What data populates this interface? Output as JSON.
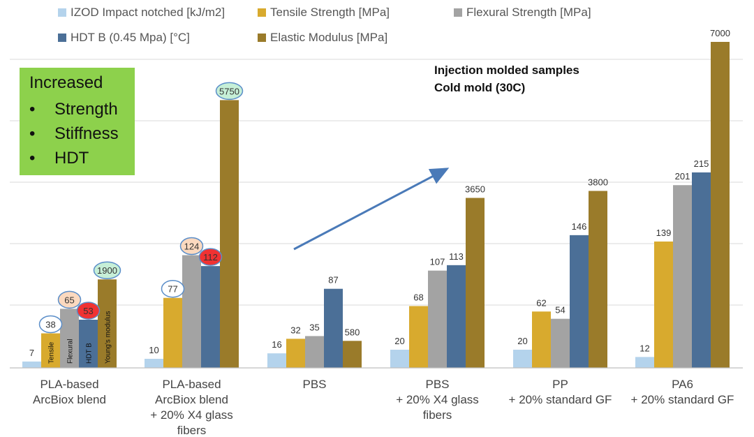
{
  "chart_data": {
    "type": "bar",
    "title": "",
    "xlabel": "",
    "ylabel": "",
    "ylim": [
      0,
      7000
    ],
    "grid": true,
    "legend_position": "top",
    "categories": [
      [
        "PLA-based",
        "ArcBiox blend"
      ],
      [
        "PLA-based",
        "ArcBiox blend",
        "+ 20% X4 glass",
        "fibers"
      ],
      [
        "PBS"
      ],
      [
        "PBS",
        "+ 20% X4 glass",
        "fibers"
      ],
      [
        "PP",
        "+ 20% standard GF"
      ],
      [
        "PA6",
        "+ 20% standard GF"
      ]
    ],
    "series": [
      {
        "name": "IZOD Impact notched [kJ/m2]",
        "color": "#b4d3ec",
        "values": [
          7,
          10,
          16,
          20,
          20,
          12
        ]
      },
      {
        "name": "Tensile Strength [MPa]",
        "color": "#d8aa2e",
        "values": [
          38,
          77,
          32,
          68,
          62,
          139
        ]
      },
      {
        "name": "Flexural Strength  [MPa]",
        "color": "#a3a3a3",
        "values": [
          65,
          124,
          35,
          107,
          54,
          201
        ]
      },
      {
        "name": "HDT B (0.45 Mpa) [°C]",
        "color": "#4b6f97",
        "values": [
          53,
          112,
          87,
          113,
          146,
          215
        ]
      },
      {
        "name": "Elastic Modulus  [MPa]",
        "color": "#9a7b2a",
        "values": [
          1900,
          5750,
          580,
          3650,
          3800,
          7000
        ]
      }
    ],
    "circled_labels": [
      {
        "value": "38",
        "fill": "#ffffff",
        "stroke": "#5b8ec9"
      },
      {
        "value": "65",
        "fill": "#fbd9bf",
        "stroke": "#5b8ec9"
      },
      {
        "value": "53",
        "fill": "#f03232",
        "stroke": "#5b8ec9"
      },
      {
        "value": "1900",
        "fill": "#c6efd7",
        "stroke": "#5b8ec9"
      },
      {
        "value": "77",
        "fill": "#ffffff",
        "stroke": "#5b8ec9"
      },
      {
        "value": "124",
        "fill": "#fbd9bf",
        "stroke": "#5b8ec9"
      },
      {
        "value": "112",
        "fill": "#f03232",
        "stroke": "#5b8ec9"
      },
      {
        "value": "5750",
        "fill": "#c6efd7",
        "stroke": "#5b8ec9"
      }
    ],
    "bar_inline_labels": [
      "Tensile",
      "Flexural",
      "HDT B",
      "Young's modulus"
    ],
    "annotations": [
      "Injection molded samples",
      "Cold mold (30C)"
    ]
  },
  "legend": {
    "izod": "IZOD Impact notched [kJ/m2]",
    "tensile": "Tensile Strength [MPa]",
    "flexural": "Flexural Strength  [MPa]",
    "hdt": "HDT B (0.45 Mpa) [°C]",
    "modulus": "Elastic Modulus  [MPa]"
  },
  "note": {
    "line1": "Injection molded samples",
    "line2": "Cold mold (30C)"
  },
  "greenbox": {
    "title": "Increased",
    "bullet": "•",
    "items": [
      "Strength",
      "Stiffness",
      "HDT"
    ]
  },
  "colors": {
    "izod": "#b4d3ec",
    "tensile": "#d8aa2e",
    "flexural": "#a3a3a3",
    "hdt": "#4b6f97",
    "modulus": "#9a7b2a",
    "arrow": "#4a7ab8",
    "grid": "#d9d9d9",
    "highlight_box": "#8dd14c"
  }
}
